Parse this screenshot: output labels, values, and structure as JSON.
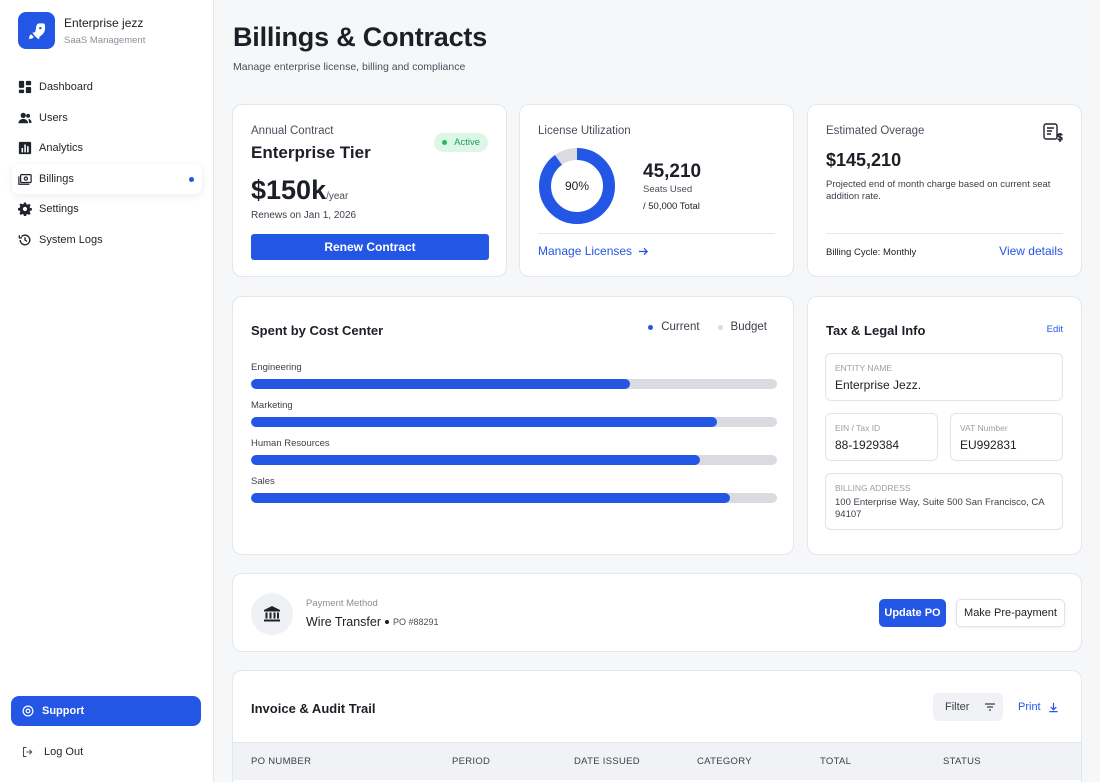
{
  "brand": {
    "name": "Enterprise jezz",
    "subtitle": "SaaS Management"
  },
  "nav": [
    {
      "label": "Dashboard",
      "icon": "dashboard-icon"
    },
    {
      "label": "Users",
      "icon": "users-icon"
    },
    {
      "label": "Analytics",
      "icon": "analytics-icon"
    },
    {
      "label": "Billings",
      "icon": "billings-icon",
      "active": true
    },
    {
      "label": "Settings",
      "icon": "gear-icon"
    },
    {
      "label": "System Logs",
      "icon": "history-icon"
    }
  ],
  "support_label": "Support",
  "logout_label": "Log Out",
  "header": {
    "title": "Billings & Contracts",
    "subtitle": "Manage enterprise license, billing and compliance"
  },
  "contract": {
    "label": "Annual Contract",
    "tier": "Enterprise Tier",
    "status": "Active",
    "price": "$150k",
    "price_unit": "/year",
    "renews": "Renews on Jan 1, 2026",
    "renew_button": "Renew Contract"
  },
  "license": {
    "label": "License Utilization",
    "percent_label": "90%",
    "utilization": 0.9,
    "seats_used_value": "45,210",
    "seats_used_label": "Seats Used",
    "seats_total": "/ 50,000 Total",
    "manage_link": "Manage Licenses"
  },
  "overage": {
    "label": "Estimated Overage",
    "amount": "$145,210",
    "description": "Projected end of month charge based on current seat addition rate.",
    "billing_cycle": "Billing Cycle: Monthly",
    "view_details": "View details"
  },
  "cost_center": {
    "title": "Spent by Cost Center",
    "legend": {
      "current": "Current",
      "budget": "Budget"
    },
    "colors": {
      "current": "#2456e6",
      "budget": "#d9dbe0"
    },
    "rows": [
      {
        "label": "Engineering",
        "current_fraction": 0.72
      },
      {
        "label": "Marketing",
        "current_fraction": 0.885
      },
      {
        "label": "Human Resources",
        "current_fraction": 0.853
      },
      {
        "label": "Sales",
        "current_fraction": 0.91
      }
    ]
  },
  "tax": {
    "title": "Tax & Legal Info",
    "edit": "Edit",
    "entity_label": "ENTITY NAME",
    "entity_value": "Enterprise Jezz.",
    "ein_label": "EIN / Tax ID",
    "ein_value": "88-1929384",
    "vat_label": "VAT Number",
    "vat_value": "EU992831",
    "address_label": "BILLING ADDRESS",
    "address_value": "100 Enterprise Way, Suite 500 San Francisco, CA 94107"
  },
  "payment": {
    "label": "Payment Method",
    "method": "Wire Transfer",
    "po": "PO #88291",
    "update_button": "Update PO",
    "prepay_button": "Make Pre-payment"
  },
  "invoice": {
    "title": "Invoice & Audit Trail",
    "filter": "Filter",
    "print": "Print",
    "columns": [
      "PO NUMBER",
      "PERIOD",
      "DATE ISSUED",
      "CATEGORY",
      "TOTAL",
      "STATUS"
    ]
  }
}
